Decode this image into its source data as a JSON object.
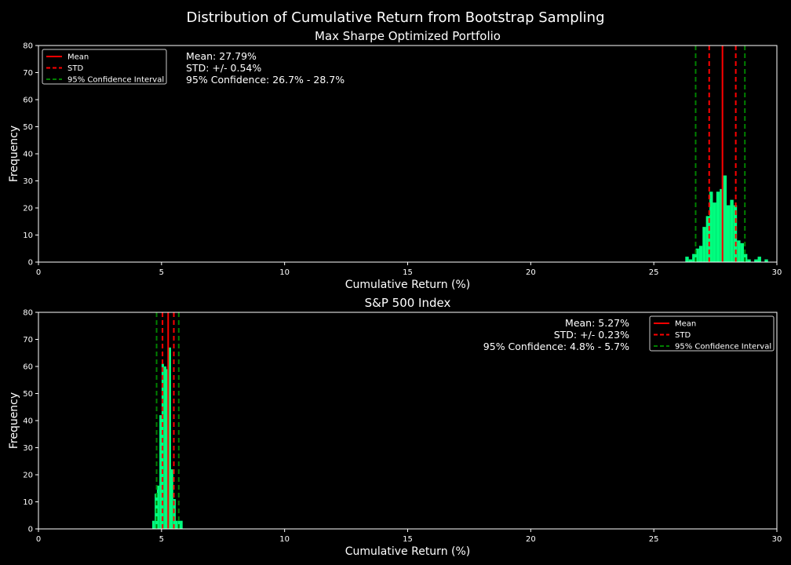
{
  "figure": {
    "title": "Distribution of Cumulative Return from Bootstrap Sampling",
    "colors": {
      "background": "#000000",
      "bar": "#00ff7f",
      "mean": "#ff0000",
      "std": "#ff0000",
      "ci": "#008000",
      "axis": "#ffffff"
    }
  },
  "chart_data": [
    {
      "type": "bar",
      "title": "Max Sharpe Optimized Portfolio",
      "xlabel": "Cumulative Return (%)",
      "ylabel": "Frequency",
      "xlim": [
        0,
        30
      ],
      "ylim": [
        0,
        80
      ],
      "xticks": [
        0,
        5,
        10,
        15,
        20,
        25,
        30
      ],
      "yticks": [
        0,
        10,
        20,
        30,
        40,
        50,
        60,
        70,
        80
      ],
      "grid": false,
      "legend_position": "top-left",
      "stats_position": "top-left",
      "bin_width": 0.14,
      "x": [
        26.35,
        26.49,
        26.63,
        26.77,
        26.91,
        27.05,
        27.19,
        27.33,
        27.47,
        27.61,
        27.75,
        27.89,
        28.03,
        28.17,
        28.31,
        28.45,
        28.59,
        28.73,
        28.87,
        29.01,
        29.15,
        29.29,
        29.43,
        29.57
      ],
      "values": [
        2,
        1,
        3,
        5,
        6,
        13,
        17,
        26,
        22,
        26,
        27,
        32,
        21,
        23,
        21,
        8,
        7,
        3,
        1,
        0,
        1,
        2,
        0,
        1
      ],
      "lines": {
        "mean": 27.79,
        "std_low": 27.25,
        "std_high": 28.33,
        "ci_low": 26.7,
        "ci_high": 28.7
      },
      "stats": [
        "Mean: 27.79%",
        "STD: +/- 0.54%",
        "95% Confidence: 26.7% - 28.7%"
      ],
      "legend": [
        "Mean",
        "STD",
        "95% Confidence Interval"
      ]
    },
    {
      "type": "bar",
      "title": "S&P 500 Index",
      "xlabel": "Cumulative Return (%)",
      "ylabel": "Frequency",
      "xlim": [
        0,
        30
      ],
      "ylim": [
        0,
        80
      ],
      "xticks": [
        0,
        5,
        10,
        15,
        20,
        25,
        30
      ],
      "yticks": [
        0,
        10,
        20,
        30,
        40,
        50,
        60,
        70,
        80
      ],
      "grid": false,
      "legend_position": "top-right",
      "stats_position": "top-right",
      "bin_width": 0.095,
      "x": [
        4.67,
        4.77,
        4.86,
        4.96,
        5.05,
        5.15,
        5.24,
        5.34,
        5.43,
        5.53,
        5.62,
        5.72,
        5.81
      ],
      "values": [
        3,
        13,
        16,
        42,
        61,
        60,
        59,
        67,
        22,
        11,
        3,
        3,
        3
      ],
      "lines": {
        "mean": 5.27,
        "std_low": 5.04,
        "std_high": 5.5,
        "ci_low": 4.8,
        "ci_high": 5.7
      },
      "stats": [
        "Mean: 5.27%",
        "STD: +/- 0.23%",
        "95% Confidence: 4.8% - 5.7%"
      ],
      "legend": [
        "Mean",
        "STD",
        "95% Confidence Interval"
      ]
    }
  ]
}
